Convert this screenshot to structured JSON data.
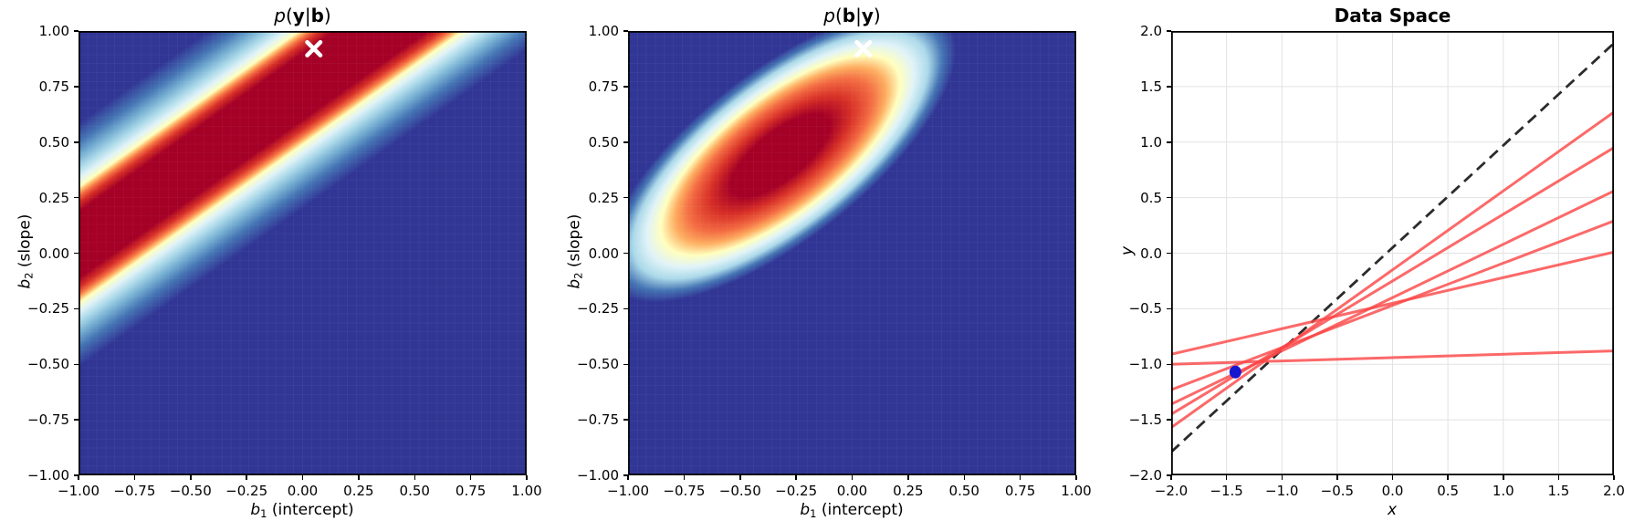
{
  "figure": {
    "background": "#ffffff",
    "description": "Bayesian linear regression: likelihood heatmap, posterior heatmap, and data-space posterior sample lines"
  },
  "colormap": {
    "name": "RdYlBu_r",
    "stops": [
      "#313695",
      "#4575b4",
      "#74add1",
      "#abd9e9",
      "#e0f3f8",
      "#ffffbf",
      "#fdae61",
      "#f46d43",
      "#d73027",
      "#a50026"
    ]
  },
  "panels": [
    {
      "id": "likelihood",
      "title_segments": [
        {
          "t": "p",
          "s": "i"
        },
        {
          "t": "(",
          "s": "n"
        },
        {
          "t": "y",
          "s": "b"
        },
        {
          "t": "|",
          "s": "n"
        },
        {
          "t": "b",
          "s": "b"
        },
        {
          "t": ")",
          "s": "n"
        }
      ],
      "xlabel_segments": [
        {
          "t": "b",
          "s": "i"
        },
        {
          "t": "1",
          "s": "sub"
        },
        {
          "t": " (intercept)",
          "s": "n"
        }
      ],
      "ylabel_segments": [
        {
          "t": "b",
          "s": "i"
        },
        {
          "t": "2",
          "s": "sub"
        },
        {
          "t": " (slope)",
          "s": "n"
        }
      ],
      "xtick_values": [
        -1,
        -0.75,
        -0.5,
        -0.25,
        0,
        0.25,
        0.5,
        0.75,
        1
      ],
      "xtick_labels": [
        "−1.00",
        "−0.75",
        "−0.50",
        "−0.25",
        "0.00",
        "0.25",
        "0.50",
        "0.75",
        "1.00"
      ],
      "ytick_values": [
        1,
        0.75,
        0.5,
        0.25,
        0,
        -0.25,
        -0.5,
        -0.75,
        -1
      ],
      "ytick_labels": [
        "1.00",
        "0.75",
        "0.50",
        "0.25",
        "0.00",
        "−0.25",
        "−0.50",
        "−0.75",
        "−1.00"
      ]
    },
    {
      "id": "posterior",
      "title_segments": [
        {
          "t": "p",
          "s": "i"
        },
        {
          "t": "(",
          "s": "n"
        },
        {
          "t": "b",
          "s": "b"
        },
        {
          "t": "|",
          "s": "n"
        },
        {
          "t": "y",
          "s": "b"
        },
        {
          "t": ")",
          "s": "n"
        }
      ],
      "xlabel_segments": [
        {
          "t": "b",
          "s": "i"
        },
        {
          "t": "1",
          "s": "sub"
        },
        {
          "t": " (intercept)",
          "s": "n"
        }
      ],
      "ylabel_segments": [
        {
          "t": "b",
          "s": "i"
        },
        {
          "t": "2",
          "s": "sub"
        },
        {
          "t": " (slope)",
          "s": "n"
        }
      ],
      "xtick_values": [
        -1,
        -0.75,
        -0.5,
        -0.25,
        0,
        0.25,
        0.5,
        0.75,
        1
      ],
      "xtick_labels": [
        "−1.00",
        "−0.75",
        "−0.50",
        "−0.25",
        "0.00",
        "0.25",
        "0.50",
        "0.75",
        "1.00"
      ],
      "ytick_values": [
        1,
        0.75,
        0.5,
        0.25,
        0,
        -0.25,
        -0.5,
        -0.75,
        -1
      ],
      "ytick_labels": [
        "1.00",
        "0.75",
        "0.50",
        "0.25",
        "0.00",
        "−0.25",
        "−0.50",
        "−0.75",
        "−1.00"
      ]
    },
    {
      "id": "dataspace",
      "title_segments": [
        {
          "t": "Data Space",
          "s": "B"
        }
      ],
      "xlabel_segments": [
        {
          "t": "x",
          "s": "i"
        }
      ],
      "ylabel_segments": [
        {
          "t": "y",
          "s": "i"
        }
      ],
      "xtick_values": [
        -2,
        -1.5,
        -1,
        -0.5,
        0,
        0.5,
        1,
        1.5,
        2
      ],
      "xtick_labels": [
        "−2.0",
        "−1.5",
        "−1.0",
        "−0.5",
        "0.0",
        "0.5",
        "1.0",
        "1.5",
        "2.0"
      ],
      "ytick_values": [
        2,
        1.5,
        1,
        0.5,
        0,
        -0.5,
        -1,
        -1.5,
        -2
      ],
      "ytick_labels": [
        "2.0",
        "1.5",
        "1.0",
        "0.5",
        "0.0",
        "−0.5",
        "−1.0",
        "−1.5",
        "−2.0"
      ]
    }
  ],
  "chart_data": [
    {
      "type": "heatmap",
      "title": "p(y|b)",
      "xlabel": "b1 (intercept)",
      "ylabel": "b2 (slope)",
      "xlim": [
        -1,
        1
      ],
      "ylim": [
        -1,
        1
      ],
      "colormap": "RdYlBu_r",
      "background": "#313695",
      "ridge": {
        "slope": 0.714,
        "intercept": 0.75
      },
      "band_halfwidth_y": 0.55,
      "band_stops": [
        [
          0,
          "#313695"
        ],
        [
          0.08,
          "#4575b4"
        ],
        [
          0.135,
          "#74add1"
        ],
        [
          0.185,
          "#abd9e9"
        ],
        [
          0.227,
          "#e0f3f8"
        ],
        [
          0.263,
          "#ffffbf"
        ],
        [
          0.283,
          "#fdae61"
        ],
        [
          0.3,
          "#f46d43"
        ],
        [
          0.325,
          "#d73027"
        ],
        [
          0.365,
          "#a50026"
        ],
        [
          0.635,
          "#a50026"
        ],
        [
          0.675,
          "#d73027"
        ],
        [
          0.7,
          "#f46d43"
        ],
        [
          0.717,
          "#fdae61"
        ],
        [
          0.737,
          "#ffffbf"
        ],
        [
          0.773,
          "#e0f3f8"
        ],
        [
          0.815,
          "#abd9e9"
        ],
        [
          0.865,
          "#74add1"
        ],
        [
          0.92,
          "#4575b4"
        ],
        [
          1,
          "#313695"
        ]
      ],
      "true_point": {
        "x": 0.05,
        "y": 0.92,
        "marker": "x"
      },
      "marker_color": "#ffffff"
    },
    {
      "type": "heatmap",
      "title": "p(b|y)",
      "xlabel": "b1 (intercept)",
      "ylabel": "b2 (slope)",
      "xlim": [
        -1,
        1
      ],
      "ylim": [
        -1,
        1
      ],
      "colormap": "RdYlBu_r",
      "background": "#313695",
      "gaussian": {
        "center_x": -0.32,
        "center_y": 0.44,
        "rx": 0.95,
        "ry": 0.38,
        "angle_deg": 38
      },
      "radial_stops": [
        [
          0,
          "#a50026"
        ],
        [
          0.28,
          "#a50026"
        ],
        [
          0.4,
          "#d73027"
        ],
        [
          0.52,
          "#f46d43"
        ],
        [
          0.6,
          "#fdae61"
        ],
        [
          0.68,
          "#ffffbf"
        ],
        [
          0.76,
          "#e0f3f8"
        ],
        [
          0.84,
          "#abd9e9"
        ],
        [
          0.92,
          "#4575b4"
        ],
        [
          1,
          "#313695"
        ]
      ],
      "true_point": {
        "x": 0.05,
        "y": 0.92,
        "marker": "x"
      },
      "marker_color": "#ffffff"
    },
    {
      "type": "line",
      "title": "Data Space",
      "xlabel": "x",
      "ylabel": "y",
      "xlim": [
        -2,
        2
      ],
      "ylim": [
        -2,
        2
      ],
      "grid": {
        "on": true,
        "step": 0.5,
        "color": "#e2e2e2"
      },
      "true_line": {
        "slope": 0.92,
        "intercept": 0.05,
        "style": "dashed",
        "color": "#2b2b2b"
      },
      "sample_lines": {
        "color": "#fb4343",
        "slopes": [
          0.71,
          0.6,
          0.48,
          0.38,
          0.23,
          0.03
        ],
        "intercepts": [
          -0.15,
          -0.25,
          -0.4,
          -0.47,
          -0.45,
          -0.94
        ]
      },
      "data_point": {
        "x": -1.42,
        "y": -1.07,
        "color": "#1616cf"
      }
    }
  ]
}
